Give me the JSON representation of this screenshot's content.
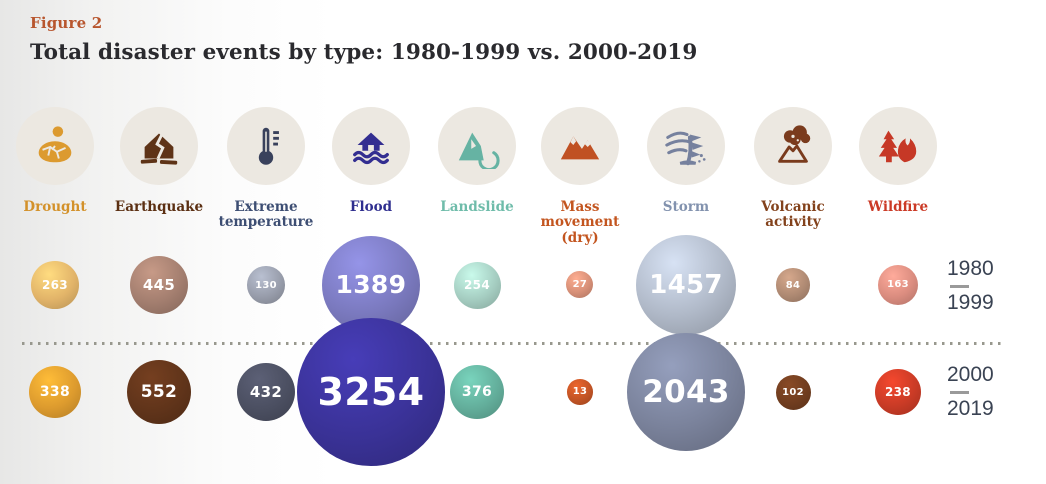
{
  "figure_label": "Figure 2",
  "title": "Total disaster events by type: 1980-1999 vs. 2000-2019",
  "legend": {
    "period1": {
      "start": "1980",
      "end": "1999"
    },
    "period2": {
      "start": "2000",
      "end": "2019"
    }
  },
  "chart_data": {
    "type": "bubble",
    "title": "Total disaster events by type: 1980-1999 vs. 2000-2019",
    "categories": [
      "Drought",
      "Earthquake",
      "Extreme temperature",
      "Flood",
      "Landslide",
      "Mass movement (dry)",
      "Storm",
      "Volcanic activity",
      "Wildfire"
    ],
    "series": [
      {
        "name": "1980-1999",
        "values": [
          263,
          445,
          130,
          1389,
          254,
          27,
          1457,
          84,
          163
        ]
      },
      {
        "name": "2000-2019",
        "values": [
          338,
          552,
          432,
          3254,
          376,
          13,
          2043,
          102,
          238
        ]
      }
    ],
    "layout_hints": {
      "rows": [
        "1980-1999 bubbles on top row",
        "2000-2019 bubbles on bottom row"
      ],
      "bubble_size": "area scales with value",
      "divider": "dotted horizontal line between the two rows",
      "legend_position": "right edge, stacked years beside each row"
    }
  },
  "columns": [
    {
      "id": "drought",
      "label": "Drought",
      "icon": "drought-icon",
      "label_color": "#d3912a",
      "icon_color": "#dc9a2f",
      "bubble_1980": "#e2b469",
      "bubble_2000": "#dd9b2e"
    },
    {
      "id": "earthquake",
      "label": "Earthquake",
      "icon": "earthquake-icon",
      "label_color": "#5b2f12",
      "icon_color": "#5e3317",
      "bubble_1980": "#a37e6f",
      "bubble_2000": "#60341a"
    },
    {
      "id": "extreme-temperature",
      "label": "Extreme temperature",
      "icon": "thermometer-icon",
      "label_color": "#3d4e73",
      "icon_color": "#39415c",
      "bubble_1980": "#989dab",
      "bubble_2000": "#4b4f61"
    },
    {
      "id": "flood",
      "label": "Flood",
      "icon": "flood-house-icon",
      "label_color": "#2f2e8f",
      "icon_color": "#332e91",
      "bubble_1980": "#7a79be",
      "bubble_2000": "#3a3297"
    },
    {
      "id": "landslide",
      "label": "Landslide",
      "icon": "landslide-mountain-icon",
      "label_color": "#6fbcaa",
      "icon_color": "#66b3a3",
      "bubble_1980": "#a5cdc1",
      "bubble_2000": "#63ae9b"
    },
    {
      "id": "mass-movement",
      "label": "Mass movement (dry)",
      "icon": "mountains-icon",
      "label_color": "#c3551f",
      "icon_color": "#c05123",
      "bubble_1980": "#d68f77",
      "bubble_2000": "#c25425"
    },
    {
      "id": "storm",
      "label": "Storm",
      "icon": "storm-wind-icon",
      "label_color": "#8292ae",
      "icon_color": "#76819e",
      "bubble_1980": "#b0b9c8",
      "bubble_2000": "#7a829b"
    },
    {
      "id": "volcanic",
      "label": "Volcanic activity",
      "icon": "volcano-icon",
      "label_color": "#83421c",
      "icon_color": "#7a3b1d",
      "bubble_1980": "#af8a73",
      "bubble_2000": "#703d1f"
    },
    {
      "id": "wildfire",
      "label": "Wildfire",
      "icon": "wildfire-icon",
      "label_color": "#cb3a26",
      "icon_color": "#c63826",
      "bubble_1980": "#da8c7f",
      "bubble_2000": "#c93b26"
    }
  ]
}
